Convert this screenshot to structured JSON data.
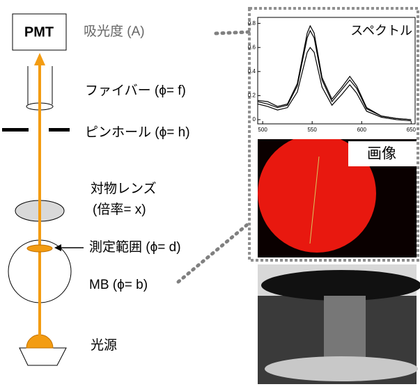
{
  "labels": {
    "pmt": "PMT",
    "absorbance": "吸光度 (A)",
    "fiber": "ファイバー (ϕ= f)",
    "pinhole": "ピンホール (ϕ= h)",
    "objective": "対物レンズ",
    "magnification": "(倍率= x)",
    "measurement_area": "測定範囲 (ϕ= d)",
    "mb": "MB (ϕ= b)",
    "light_source": "光源",
    "image": "画像"
  },
  "chart_data": {
    "type": "line",
    "title": "スペクトル",
    "x": [
      495,
      505,
      515,
      525,
      535,
      545,
      548,
      552,
      560,
      570,
      580,
      588,
      595,
      605,
      620,
      635,
      650
    ],
    "series": [
      {
        "color": "#000000",
        "values": [
          0.16,
          0.15,
          0.11,
          0.13,
          0.3,
          0.72,
          0.78,
          0.72,
          0.35,
          0.17,
          0.27,
          0.36,
          0.28,
          0.1,
          0.03,
          0.01,
          0.0
        ]
      },
      {
        "color": "#000000",
        "values": [
          0.15,
          0.13,
          0.1,
          0.12,
          0.28,
          0.68,
          0.74,
          0.68,
          0.33,
          0.15,
          0.25,
          0.33,
          0.26,
          0.09,
          0.03,
          0.01,
          0.0
        ]
      },
      {
        "color": "#000000",
        "values": [
          0.13,
          0.11,
          0.08,
          0.1,
          0.23,
          0.56,
          0.6,
          0.56,
          0.27,
          0.12,
          0.21,
          0.29,
          0.22,
          0.07,
          0.02,
          0.0,
          -0.01
        ]
      }
    ],
    "xlim": [
      495,
      654
    ],
    "ylim": [
      -0.035,
      0.85
    ],
    "xticks": [
      500,
      550,
      600,
      650
    ],
    "yticks": [
      0,
      0.2,
      0.4,
      0.6,
      0.8
    ]
  }
}
